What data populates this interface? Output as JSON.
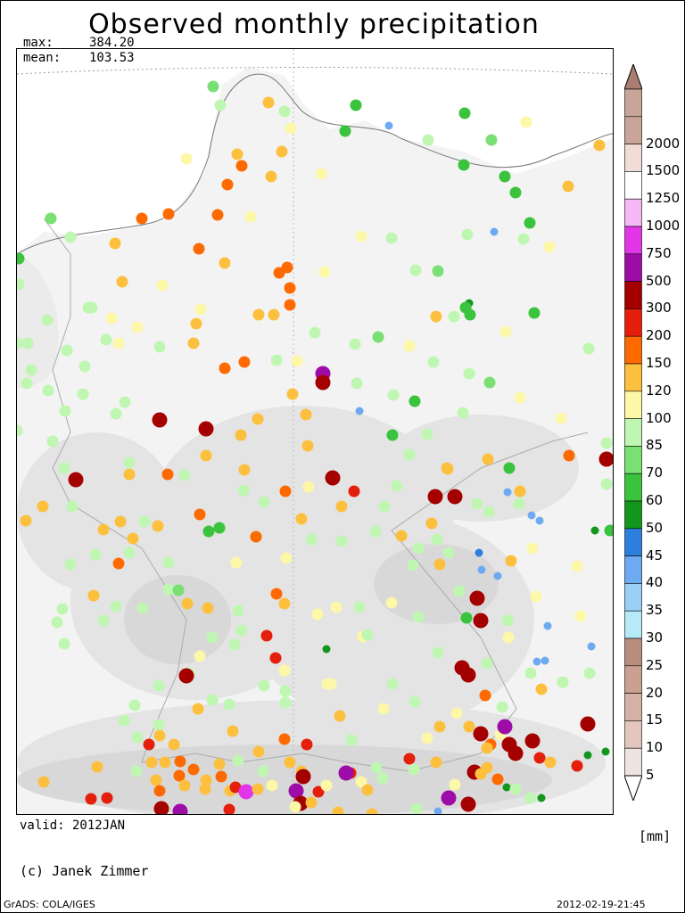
{
  "title": "Observed monthly precipitation",
  "stats": {
    "max_label": "max:",
    "max_value": "384.20",
    "mean_label": "mean:",
    "mean_value": "103.53"
  },
  "valid_text": "valid: 2012JAN",
  "unit_text": "[mm]",
  "copyright": "(c) Janek Zimmer",
  "footer_left": "GrADS: COLA/IGES",
  "footer_right": "2012-02-19-21:45",
  "legend": {
    "levels": [
      {
        "label": "5",
        "color": "#f0e4e0"
      },
      {
        "label": "10",
        "color": "#e3c7bd"
      },
      {
        "label": "15",
        "color": "#d6b2a6"
      },
      {
        "label": "20",
        "color": "#c9a091"
      },
      {
        "label": "25",
        "color": "#b98d7e"
      },
      {
        "label": "30",
        "color": "#b7eaf7"
      },
      {
        "label": "35",
        "color": "#9ccff6"
      },
      {
        "label": "40",
        "color": "#6eaaf2"
      },
      {
        "label": "45",
        "color": "#2c7fdd"
      },
      {
        "label": "50",
        "color": "#12961b"
      },
      {
        "label": "60",
        "color": "#3ac33c"
      },
      {
        "label": "70",
        "color": "#7ae073"
      },
      {
        "label": "85",
        "color": "#bff7b2"
      },
      {
        "label": "100",
        "color": "#fdf7a8"
      },
      {
        "label": "120",
        "color": "#fdc03e"
      },
      {
        "label": "150",
        "color": "#fe6a00"
      },
      {
        "label": "200",
        "color": "#e41f0b"
      },
      {
        "label": "300",
        "color": "#a50000"
      },
      {
        "label": "500",
        "color": "#9e0ca7"
      },
      {
        "label": "750",
        "color": "#e235e8"
      },
      {
        "label": "1000",
        "color": "#f6b8f7"
      },
      {
        "label": "1250",
        "color": "#ffffff"
      },
      {
        "label": "1500",
        "color": "#f1ddd6"
      },
      {
        "label": "2000",
        "color": "#c8a499"
      }
    ],
    "top_color": "#a97d70",
    "bottom_color": "#ffffff"
  }
}
